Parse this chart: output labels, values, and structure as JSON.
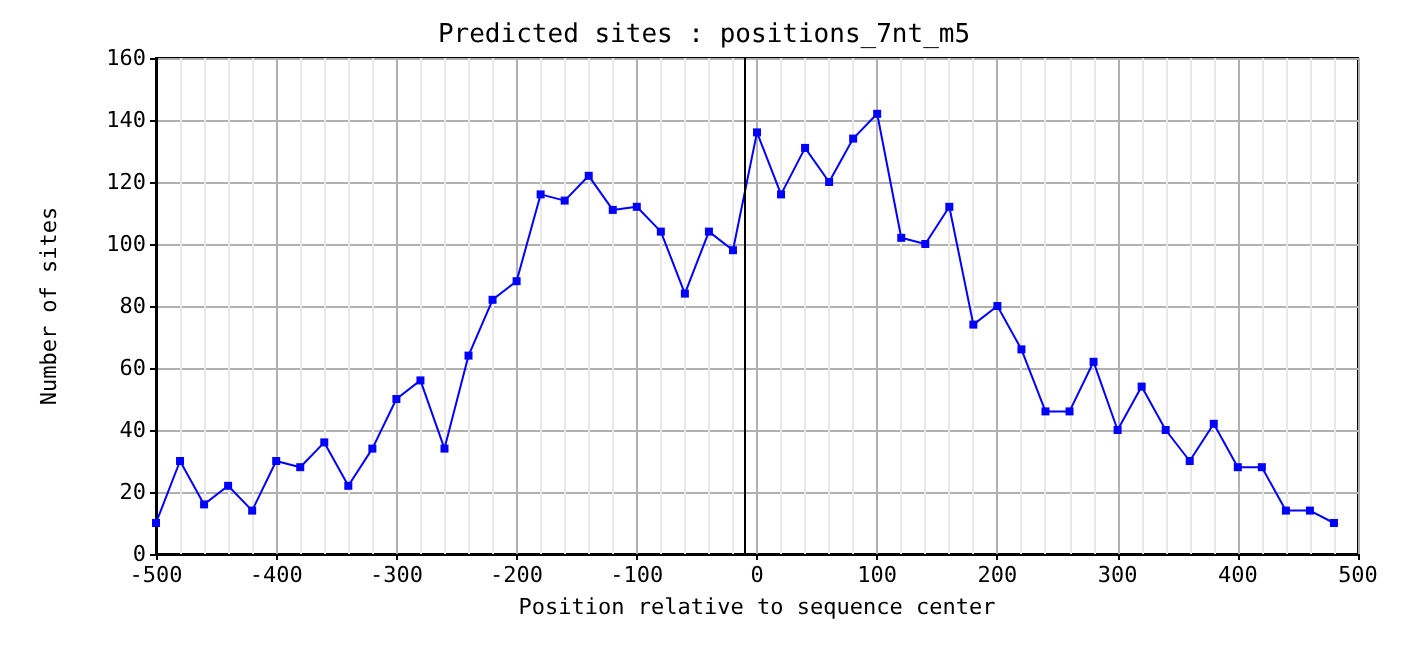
{
  "chart_data": {
    "type": "line",
    "title": "Predicted sites : positions_7nt_m5",
    "xlabel": "Position relative to sequence center",
    "ylabel": "Number of sites",
    "x": [
      -500,
      -480,
      -460,
      -440,
      -420,
      -400,
      -380,
      -360,
      -340,
      -320,
      -300,
      -280,
      -260,
      -240,
      -220,
      -200,
      -180,
      -160,
      -140,
      -120,
      -100,
      -80,
      -60,
      -40,
      -20,
      0,
      20,
      40,
      60,
      80,
      100,
      120,
      140,
      160,
      180,
      200,
      220,
      240,
      260,
      280,
      300,
      320,
      340,
      360,
      380,
      400,
      420,
      440,
      460,
      480
    ],
    "series": [
      {
        "color": "#0000ff",
        "values": [
          10,
          30,
          16,
          22,
          14,
          30,
          28,
          36,
          22,
          34,
          50,
          56,
          34,
          64,
          82,
          88,
          116,
          114,
          122,
          111,
          112,
          104,
          84,
          104,
          98,
          136,
          116,
          131,
          120,
          134,
          142,
          102,
          100,
          112,
          74,
          80,
          66,
          46,
          46,
          62,
          40,
          54,
          40,
          30,
          42,
          28,
          28,
          14,
          14,
          10
        ]
      }
    ],
    "xlim": [
      -500,
      500
    ],
    "xticks": [
      -500,
      -400,
      -300,
      -200,
      -100,
      0,
      100,
      200,
      300,
      400,
      500
    ],
    "ylim": [
      0,
      160
    ],
    "yticks": [
      0,
      20,
      40,
      60,
      80,
      100,
      120,
      140,
      160
    ],
    "ref_lines": [
      {
        "axis": "x",
        "value": -10,
        "color": "#000000"
      }
    ],
    "grid": true,
    "marker": "square",
    "line_style": "solid"
  }
}
